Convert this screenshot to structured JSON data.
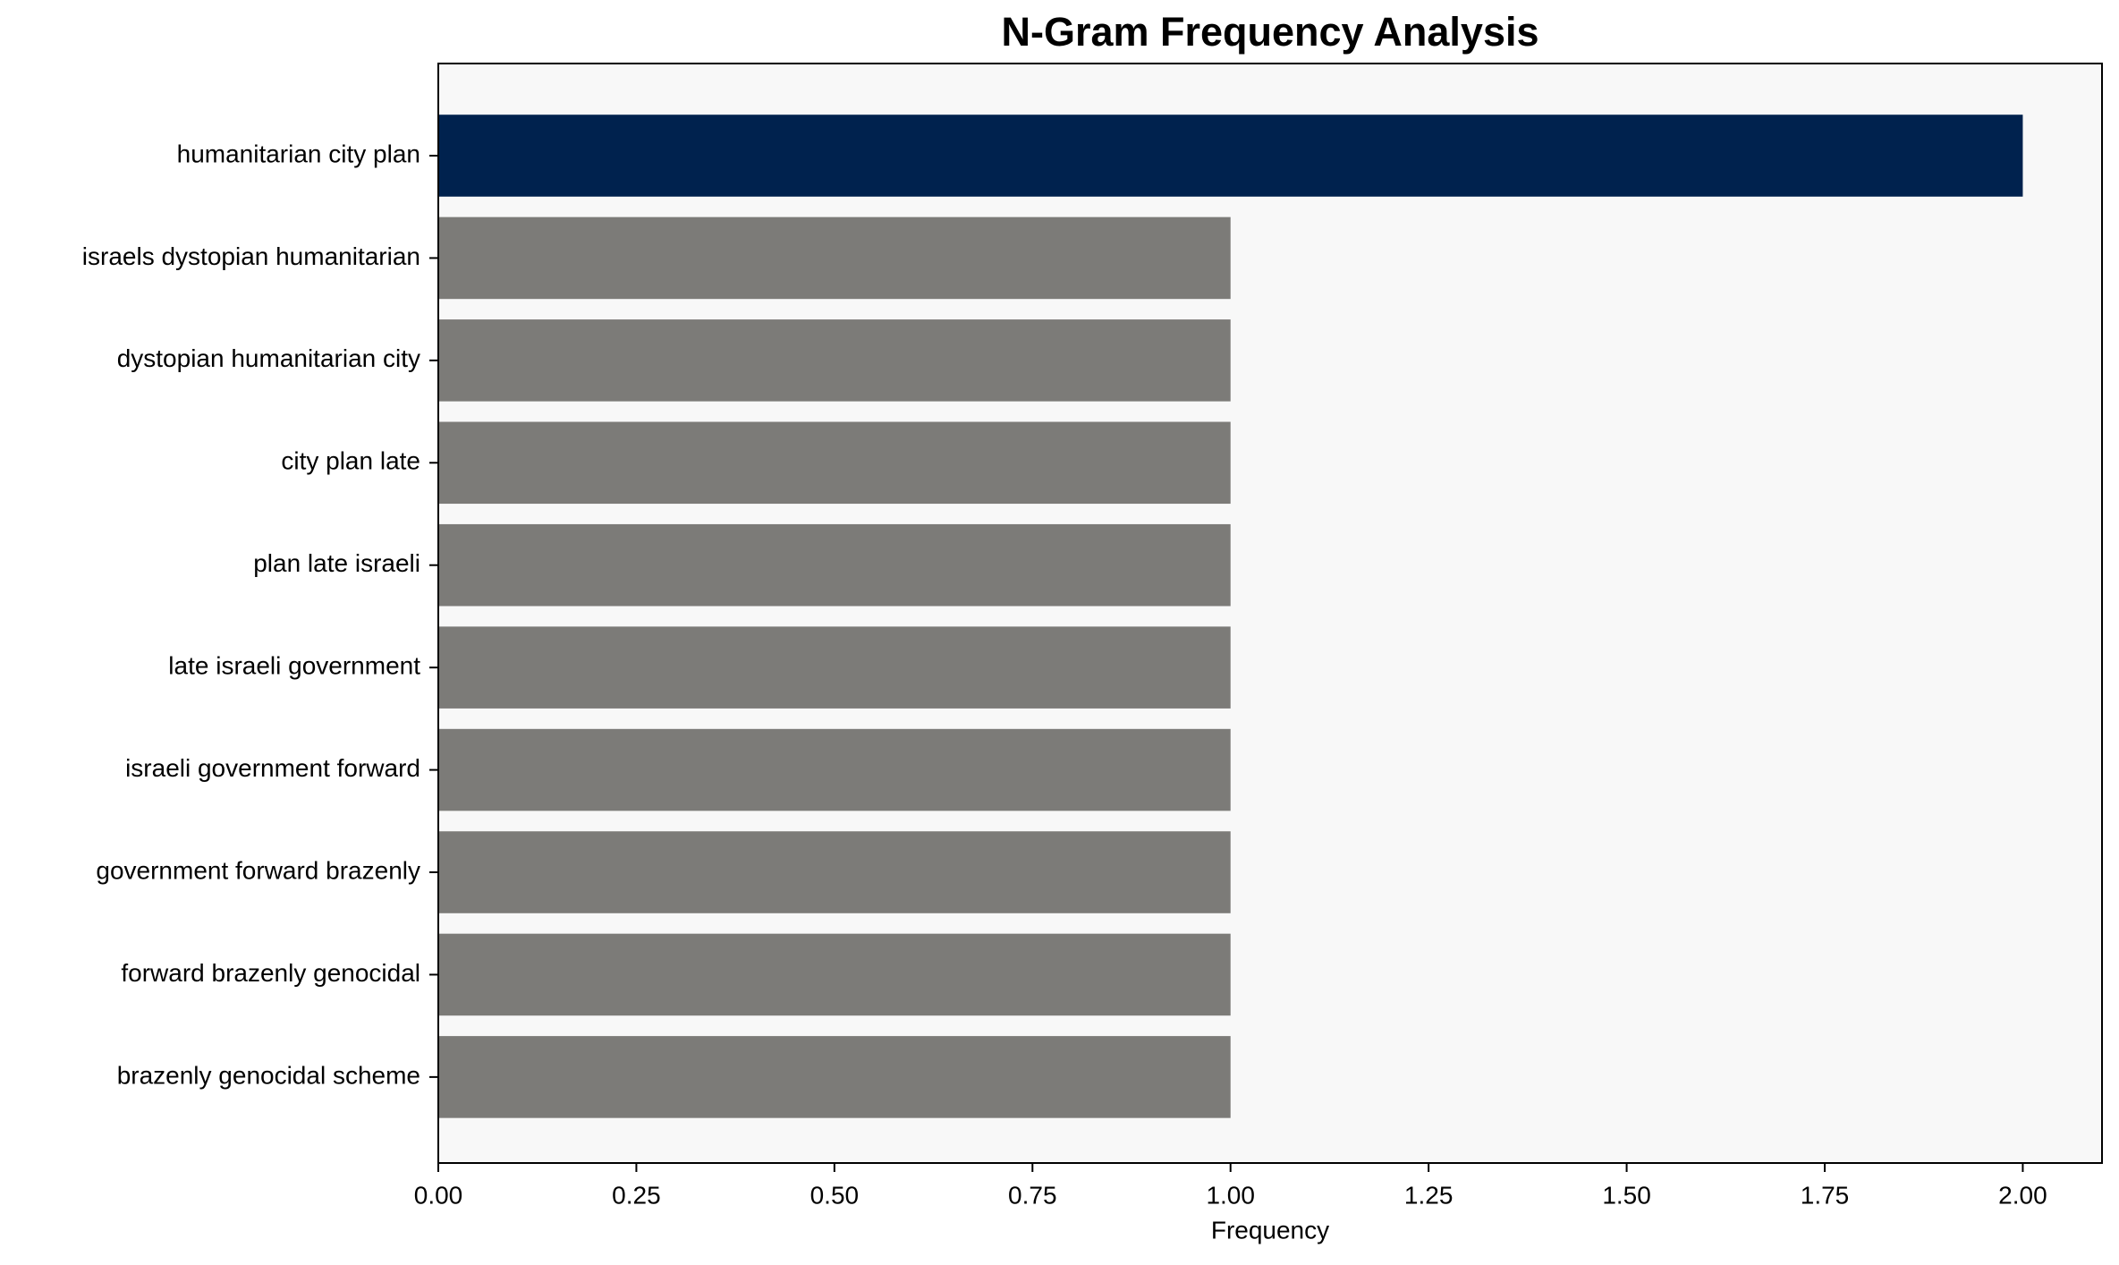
{
  "chart_data": {
    "type": "barh",
    "title": "N-Gram Frequency Analysis",
    "xlabel": "Frequency",
    "categories": [
      "humanitarian city plan",
      "israels dystopian humanitarian",
      "dystopian humanitarian city",
      "city plan late",
      "plan late israeli",
      "late israeli government",
      "israeli government forward",
      "government forward brazenly",
      "forward brazenly genocidal",
      "brazenly genocidal scheme"
    ],
    "values": [
      2,
      1,
      1,
      1,
      1,
      1,
      1,
      1,
      1,
      1
    ],
    "colors": [
      "#00224e",
      "#7c7b78",
      "#7c7b78",
      "#7c7b78",
      "#7c7b78",
      "#7c7b78",
      "#7c7b78",
      "#7c7b78",
      "#7c7b78",
      "#7c7b78"
    ],
    "xlim": [
      0,
      2.1
    ],
    "xticks": [
      {
        "value": 0,
        "label": "0.00"
      },
      {
        "value": 0.25,
        "label": "0.25"
      },
      {
        "value": 0.5,
        "label": "0.50"
      },
      {
        "value": 0.75,
        "label": "0.75"
      },
      {
        "value": 1,
        "label": "1.00"
      },
      {
        "value": 1.25,
        "label": "1.25"
      },
      {
        "value": 1.5,
        "label": "1.50"
      },
      {
        "value": 1.75,
        "label": "1.75"
      },
      {
        "value": 2,
        "label": "2.00"
      }
    ],
    "grid": false
  }
}
